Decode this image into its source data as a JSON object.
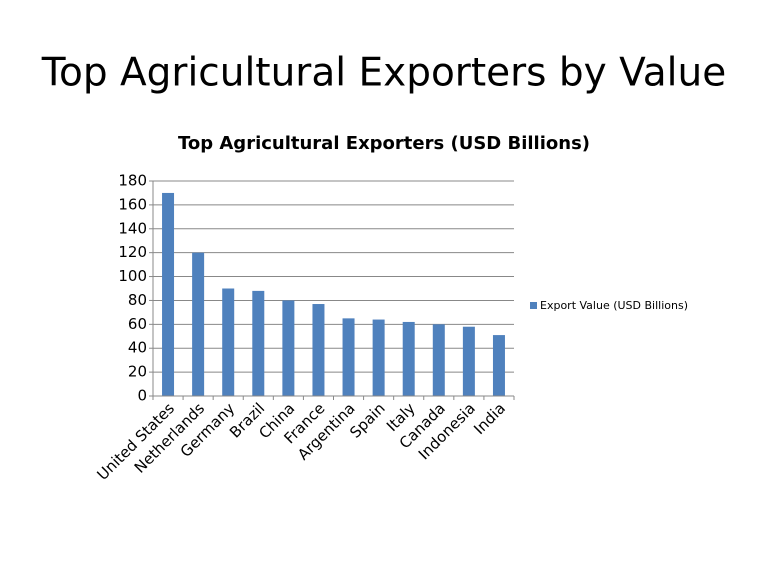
{
  "slide_title": "Top Agricultural Exporters by Value",
  "chart_data": {
    "type": "bar",
    "title": "Top Agricultural Exporters (USD Billions)",
    "categories": [
      "United States",
      "Netherlands",
      "Germany",
      "Brazil",
      "China",
      "France",
      "Argentina",
      "Spain",
      "Italy",
      "Canada",
      "Indonesia",
      "India"
    ],
    "series": [
      {
        "name": "Export Value (USD Billions)",
        "color": "#4f81bd",
        "values": [
          170,
          120,
          90,
          88,
          80,
          77,
          65,
          64,
          62,
          60,
          58,
          51
        ]
      }
    ],
    "ylim": [
      0,
      180
    ],
    "yticks": [
      0,
      20,
      40,
      60,
      80,
      100,
      120,
      140,
      160,
      180
    ],
    "grid": true,
    "legend": "right"
  }
}
